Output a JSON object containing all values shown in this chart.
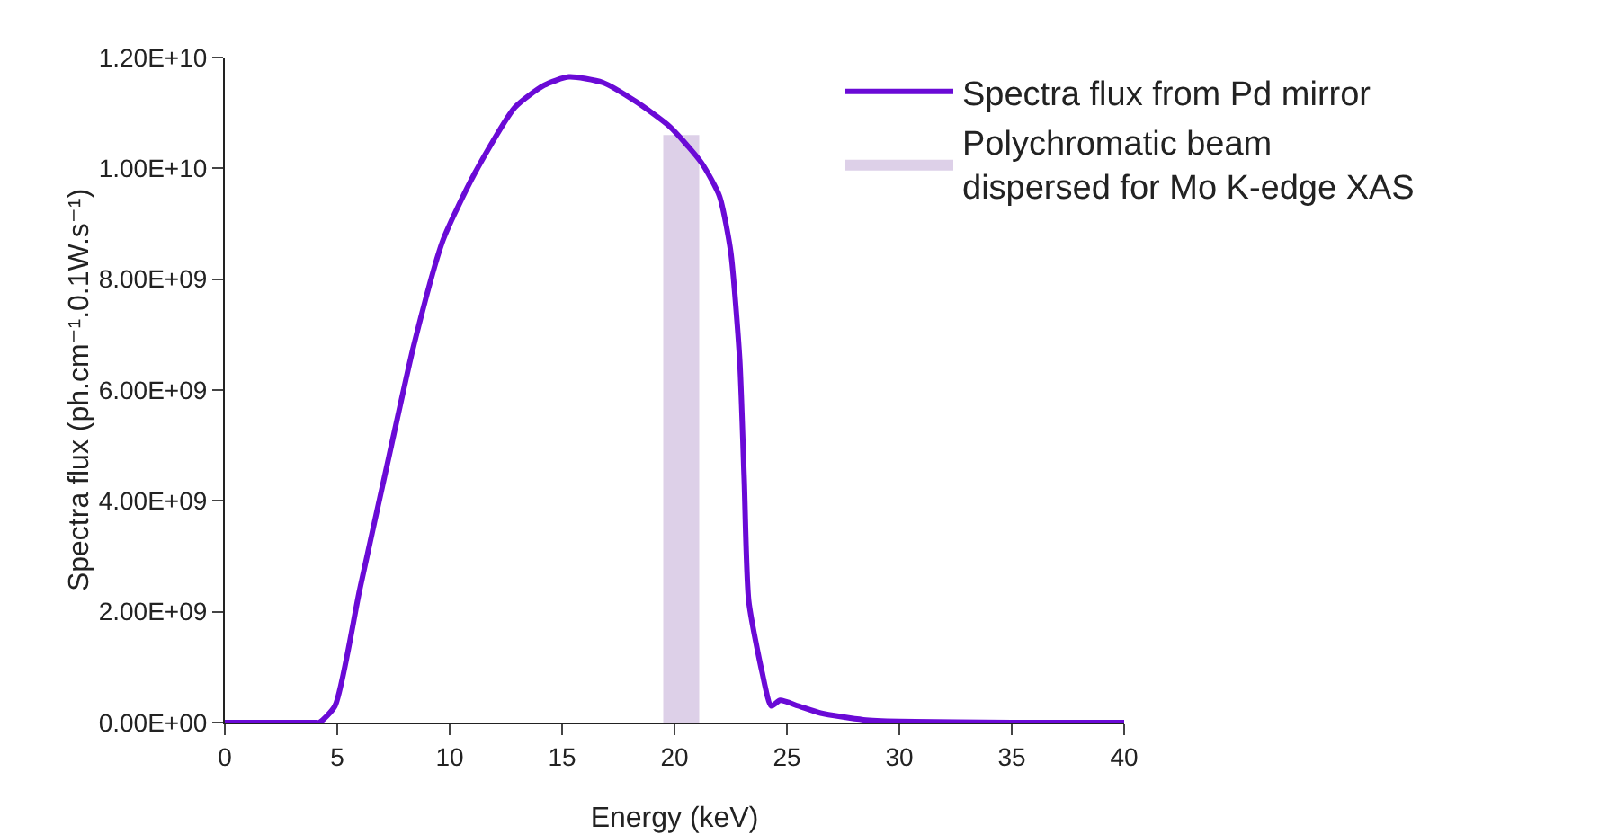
{
  "chart_data": {
    "type": "line",
    "xlabel": "Energy (keV)",
    "ylabel": "Spectra flux (ph.cm⁻¹.0.1W.s⁻¹)",
    "series": [
      {
        "name": "Spectra flux from Pd mirror",
        "color": "#6a0ad6",
        "x": [
          0,
          2,
          4,
          4.2,
          4.9,
          6.0,
          7.3,
          8.4,
          9.7,
          11.1,
          12.9,
          14.2,
          15.3,
          16.8,
          18.3,
          19.8,
          21.2,
          22.0,
          22.5,
          22.9,
          23.1,
          23.3,
          23.9,
          24.3,
          24.7,
          25.5,
          26.5,
          28.4,
          30,
          35,
          40
        ],
        "values": [
          0,
          0,
          0,
          0,
          300000000.0,
          2400000000.0,
          4800000000.0,
          6800000000.0,
          8700000000.0,
          9900000000.0,
          11100000000.0,
          11500000000.0,
          11650000000.0,
          11550000000.0,
          11200000000.0,
          10750000000.0,
          10100000000.0,
          9500000000.0,
          8500000000.0,
          6550000000.0,
          4400000000.0,
          2200000000.0,
          900000000.0,
          300000000.0,
          400000000.0,
          300000000.0,
          170000000.0,
          50000000.0,
          20000000.0,
          0,
          0
        ]
      },
      {
        "name": "Polychromatic beam dispersed for Mo K-edge XAS",
        "type": "area",
        "color": "#ddd0e8",
        "x": [
          19.5,
          21.1
        ],
        "values": [
          10600000000.0,
          10600000000.0
        ]
      }
    ],
    "xlim": [
      0,
      40
    ],
    "xticks": [
      0,
      5,
      10,
      15,
      20,
      25,
      30,
      35,
      40
    ],
    "ylim": [
      0,
      12000000000.0
    ],
    "yticks": [
      {
        "value": 0,
        "label": "0.00E+00"
      },
      {
        "value": 2000000000.0,
        "label": "2.00E+09"
      },
      {
        "value": 4000000000.0,
        "label": "4.00E+09"
      },
      {
        "value": 6000000000.0,
        "label": "6.00E+09"
      },
      {
        "value": 8000000000.0,
        "label": "8.00E+09"
      },
      {
        "value": 10000000000.0,
        "label": "1.00E+10"
      },
      {
        "value": 12000000000.0,
        "label": "1.20E+10"
      }
    ],
    "grid": false,
    "legend": "top right",
    "marker": "none",
    "line_style": "solid"
  }
}
